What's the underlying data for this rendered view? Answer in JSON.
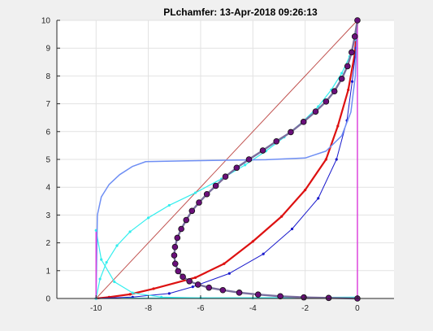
{
  "chart_data": {
    "type": "line",
    "title": "PLchamfer: 13-Apr-2018 09:26:13",
    "xlim": [
      -11.5,
      1.4
    ],
    "ylim": [
      0,
      10
    ],
    "xticks": [
      -10,
      -8,
      -6,
      -4,
      -2,
      0
    ],
    "yticks": [
      0,
      1,
      2,
      3,
      4,
      5,
      6,
      7,
      8,
      9,
      10
    ],
    "xtick_labels": [
      "-10",
      "-8",
      "-6",
      "-4",
      "-2",
      "0"
    ],
    "ytick_labels": [
      "0",
      "1",
      "2",
      "3",
      "4",
      "5",
      "6",
      "7",
      "8",
      "9",
      "10"
    ],
    "grid": true,
    "colors": {
      "background": "#f0f0f0",
      "axes": "#ffffff",
      "grid": "#e2e2e2",
      "axis_line": "#262626"
    },
    "series": [
      {
        "color": "#c0504d",
        "width": 1,
        "marker": "none",
        "x": [
          -10,
          0
        ],
        "y": [
          0,
          10
        ]
      },
      {
        "color": "#dd1111",
        "width": 2.2,
        "marker": "small-dot",
        "x": [
          -10,
          -9.5,
          -8.7,
          -7.8,
          -6.2,
          -5.1,
          -4,
          -2.9,
          -2,
          -1.2,
          -0.75,
          -0.35,
          -0.1,
          0
        ],
        "y": [
          0,
          0.05,
          0.15,
          0.35,
          0.75,
          1.25,
          2.05,
          2.95,
          3.9,
          5.0,
          6.2,
          7.5,
          8.8,
          10
        ]
      },
      {
        "color": "#1a1acc",
        "width": 1,
        "marker": "small-dot",
        "x": [
          -10,
          -8.6,
          -7.2,
          -6.3,
          -4.9,
          -3.6,
          -2.5,
          -1.5,
          -0.8,
          -0.4,
          -0.2,
          -0.05,
          0
        ],
        "y": [
          0,
          0.05,
          0.18,
          0.42,
          0.9,
          1.6,
          2.5,
          3.6,
          5.0,
          6.4,
          7.8,
          9.0,
          10
        ]
      },
      {
        "color": "#33eeee",
        "width": 1.2,
        "marker": "small-dot",
        "x": [
          -10,
          -9.85,
          -9.6,
          -9.2,
          -8.7,
          -8.0,
          -7.2,
          -6.2,
          -5.2,
          -4.3,
          -3.5,
          -2.8,
          -2.1,
          -1.5,
          -1,
          -0.6,
          -0.3,
          -0.1,
          0
        ],
        "y": [
          0,
          0.7,
          1.3,
          1.9,
          2.4,
          2.9,
          3.35,
          3.8,
          4.3,
          4.8,
          5.3,
          5.8,
          6.35,
          6.9,
          7.5,
          8.1,
          8.7,
          9.3,
          10
        ]
      },
      {
        "color": "#33eeee",
        "width": 1.2,
        "marker": "small-dot",
        "x": [
          -10,
          -9.8,
          -9.3,
          -8.6,
          -7.5,
          -6,
          -4,
          -2,
          0
        ],
        "y": [
          2.45,
          1.4,
          0.6,
          0.2,
          0.05,
          0.02,
          0.01,
          0.01,
          0
        ]
      },
      {
        "color": "#33eeee",
        "width": 1.2,
        "marker": "none",
        "x": [
          -9,
          -6,
          -3,
          0
        ],
        "y": [
          0.01,
          0.02,
          0.03,
          0.05
        ]
      },
      {
        "color": "#6f8ff4",
        "width": 1.5,
        "marker": "none",
        "x": [
          -10,
          -9.95,
          -9.8,
          -9.5,
          -9.1,
          -8.6,
          -8.1,
          -6.5,
          -5,
          -3.5,
          -2,
          -1.2,
          -0.6,
          -0.25,
          -0.08,
          0
        ],
        "y": [
          0,
          3.0,
          3.65,
          4.1,
          4.45,
          4.75,
          4.92,
          4.95,
          4.97,
          4.99,
          5.05,
          5.3,
          5.85,
          6.7,
          8.0,
          10
        ]
      },
      {
        "color": "#dd44dd",
        "width": 1.5,
        "marker": "none",
        "x": [
          -10,
          -10,
          -10
        ],
        "y": [
          0,
          1.3,
          2.4
        ]
      },
      {
        "color": "#dd44dd",
        "width": 1.5,
        "marker": "none",
        "x": [
          0,
          0,
          0
        ],
        "y": [
          0,
          5,
          10
        ]
      },
      {
        "color": "#7a6e9e",
        "width": 2.4,
        "marker": "big-dot",
        "x": [
          0,
          -0.1,
          -0.22,
          -0.38,
          -0.6,
          -0.88,
          -1.2,
          -1.6,
          -2.06,
          -2.55,
          -3.1,
          -3.62,
          -4.15,
          -4.62,
          -5.05,
          -5.42,
          -5.76,
          -6.06,
          -6.33,
          -6.55,
          -6.74,
          -6.89,
          -6.98,
          -7.01,
          -6.97,
          -6.86,
          -6.68,
          -6.43,
          -6.1,
          -5.68,
          -5.15,
          -4.52,
          -3.8,
          -2.95,
          -2.05,
          -1.1,
          0
        ],
        "y": [
          10,
          9.42,
          8.85,
          8.35,
          7.9,
          7.45,
          7.08,
          6.72,
          6.35,
          5.98,
          5.65,
          5.32,
          5.0,
          4.7,
          4.38,
          4.05,
          3.75,
          3.45,
          3.15,
          2.82,
          2.5,
          2.18,
          1.85,
          1.55,
          1.25,
          0.98,
          0.78,
          0.62,
          0.5,
          0.39,
          0.3,
          0.21,
          0.14,
          0.08,
          0.04,
          0.02,
          0
        ]
      }
    ]
  }
}
